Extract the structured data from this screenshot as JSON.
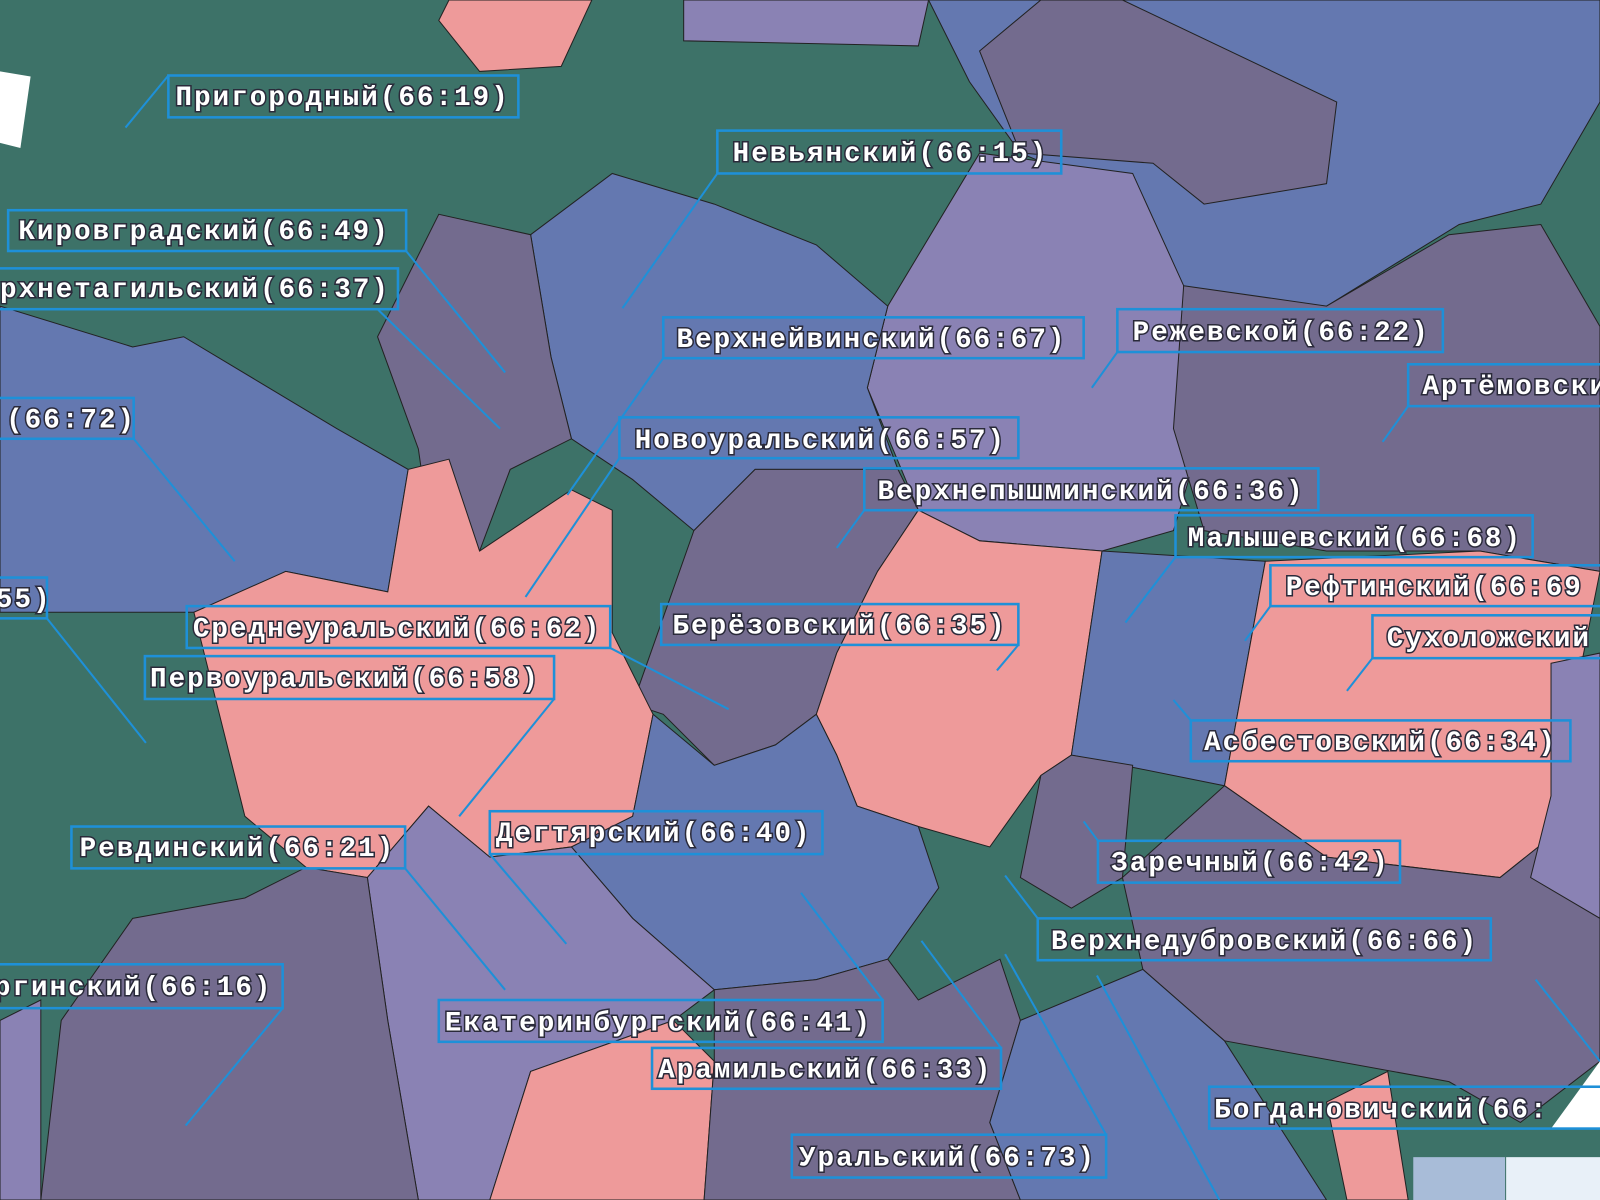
{
  "labels": [
    {
      "text": "Пригородный(66:19)"
    },
    {
      "text": "Невьянский(66:15)"
    },
    {
      "text": "Кировградский(66:49)"
    },
    {
      "text": "рхнетагильский(66:37)"
    },
    {
      "text": "Верхнейвинский(66:67)"
    },
    {
      "text": "Режевской(66:22)"
    },
    {
      "text": "Артёмовски"
    },
    {
      "text": "(66:72)"
    },
    {
      "text": "Новоуральский(66:57)"
    },
    {
      "text": "Верхнепышминский(66:36)"
    },
    {
      "text": "Малышевский(66:68)"
    },
    {
      "text": "55)"
    },
    {
      "text": "Среднеуральский(66:62)"
    },
    {
      "text": "Берёзовский(66:35)"
    },
    {
      "text": "Рефтинский(66:69"
    },
    {
      "text": "Сухоложский"
    },
    {
      "text": "Первоуральский(66:58)"
    },
    {
      "text": "Асбестовский(66:34)"
    },
    {
      "text": "Ревдинский(66:21)"
    },
    {
      "text": "Дегтярский(66:40)"
    },
    {
      "text": "Заречный(66:42)"
    },
    {
      "text": "Верхнедубровский(66:66)"
    },
    {
      "text": "ргинский(66:16)"
    },
    {
      "text": "Екатеринбургский(66:41)"
    },
    {
      "text": "Арамильский(66:33)"
    },
    {
      "text": "Богдановичский(66:"
    },
    {
      "text": "Уральский(66:73)"
    }
  ]
}
